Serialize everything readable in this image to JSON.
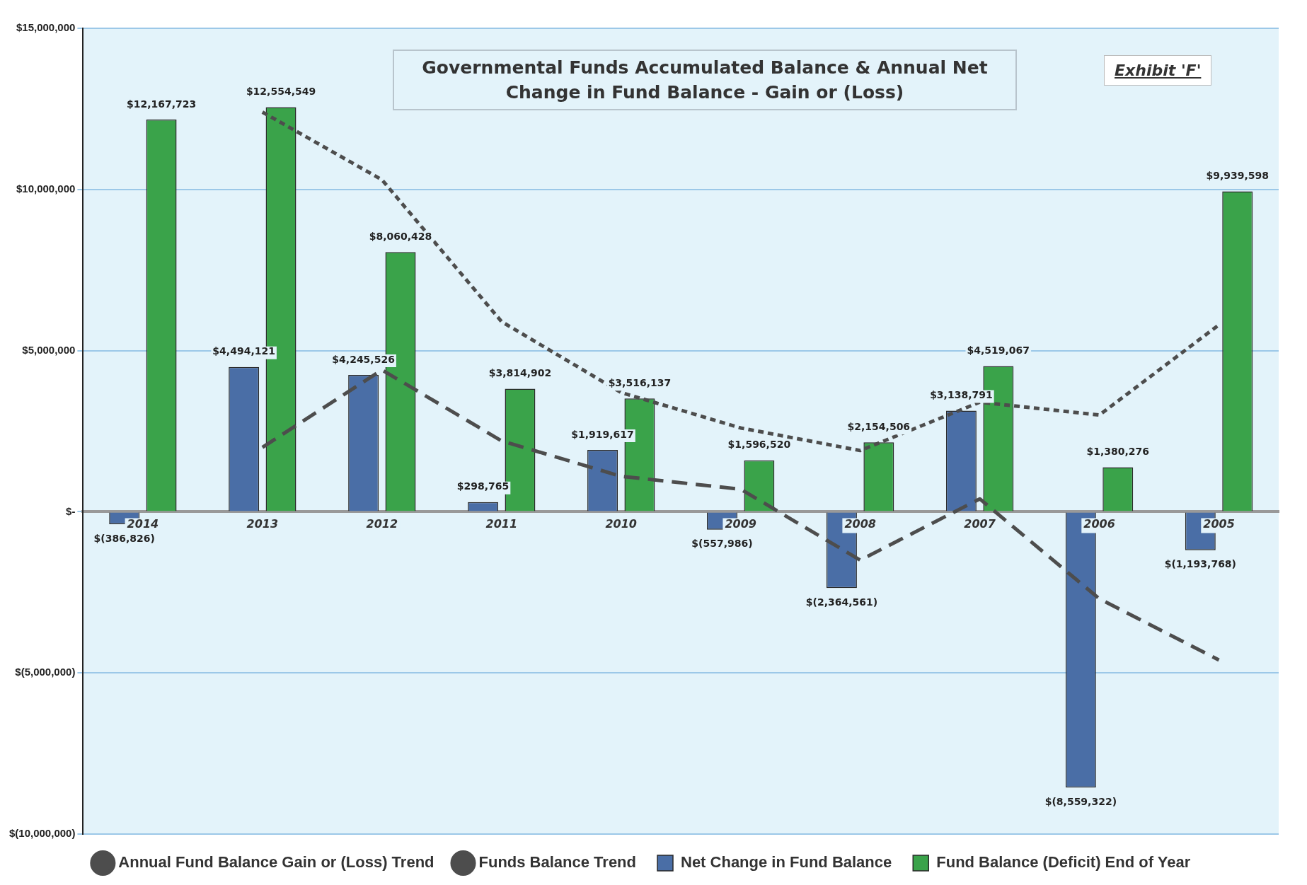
{
  "chart_data": {
    "type": "bar",
    "title": "Governmental Funds Accumulated Balance & Annual Net Change in Fund Balance - Gain or (Loss)",
    "annotations": [
      "Exhibit 'F'"
    ],
    "categories": [
      "2014",
      "2013",
      "2012",
      "2011",
      "2010",
      "2009",
      "2008",
      "2007",
      "2006",
      "2005"
    ],
    "series": [
      {
        "type": "bar",
        "name": "Net Change in Fund Balance",
        "color": "#4a6ea6",
        "values": [
          -386826,
          4494121,
          4245526,
          298765,
          1919617,
          -557986,
          -2364561,
          3138791,
          -8559322,
          -1193768
        ],
        "value_labels": [
          "$(386,826)",
          "$4,494,121",
          "$4,245,526",
          "$298,765",
          "$1,919,617",
          "$(557,986)",
          "$(2,364,561)",
          "$3,138,791",
          "$(8,559,322)",
          "$(1,193,768)"
        ]
      },
      {
        "type": "bar",
        "name": "Fund Balance (Deficit) End of Year",
        "color": "#3aa34a",
        "values": [
          12167723,
          12554549,
          8060428,
          3814902,
          3516137,
          1596520,
          2154506,
          4519067,
          1380276,
          9939598
        ],
        "value_labels": [
          "$12,167,723",
          "$12,554,549",
          "$8,060,428",
          "$3,814,902",
          "$3,516,137",
          "$1,596,520",
          "$2,154,506",
          "$4,519,067",
          "$1,380,276",
          "$9,939,598"
        ]
      },
      {
        "type": "line",
        "name": "Annual Fund Balance Gain or (Loss) Trend",
        "color": "#4d4d4d",
        "line_style": "dashed",
        "values": [
          null,
          2000000,
          4400000,
          2200000,
          1100000,
          700000,
          -1500000,
          400000,
          -2700000,
          -4600000
        ]
      },
      {
        "type": "line",
        "name": "Funds Balance Trend",
        "color": "#4d4d4d",
        "line_style": "dotted",
        "values": [
          null,
          12400000,
          10300000,
          5900000,
          3700000,
          2600000,
          1900000,
          3400000,
          3000000,
          5800000
        ]
      }
    ],
    "ylim": [
      -10000000,
      15000000
    ],
    "yticks": [
      {
        "value": -10000000,
        "label": "$(10,000,000)"
      },
      {
        "value": -5000000,
        "label": "$(5,000,000)"
      },
      {
        "value": 0,
        "label": "$-"
      },
      {
        "value": 5000000,
        "label": "$5,000,000"
      },
      {
        "value": 10000000,
        "label": "$10,000,000"
      },
      {
        "value": 15000000,
        "label": "$15,000,000"
      }
    ],
    "grid": "y",
    "legend": "bottom",
    "marker": "none"
  }
}
